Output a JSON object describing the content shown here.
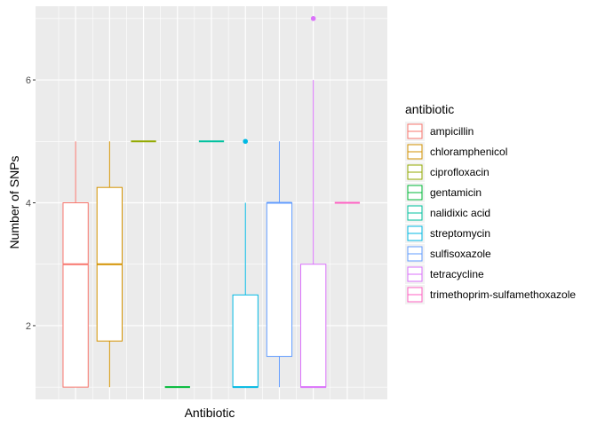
{
  "chart_data": {
    "type": "boxplot",
    "xlabel": "Antibiotic",
    "ylabel": "Number of SNPs",
    "ylim": [
      0.8,
      7.2
    ],
    "yticks": [
      2,
      4,
      6
    ],
    "x_tick_labels": false,
    "legend_title": "antibiotic",
    "legend_position": "right",
    "grid": true,
    "series": [
      {
        "name": "ampicillin",
        "color": "#F8766D",
        "min": 1,
        "q1": 1,
        "median": 3,
        "q3": 4,
        "max": 5,
        "outliers": []
      },
      {
        "name": "chloramphenicol",
        "color": "#D39200",
        "min": 1,
        "q1": 1.75,
        "median": 3,
        "q3": 4.25,
        "max": 5,
        "outliers": []
      },
      {
        "name": "ciprofloxacin",
        "color": "#93AA00",
        "min": 5,
        "q1": 5,
        "median": 5,
        "q3": 5,
        "max": 5,
        "outliers": []
      },
      {
        "name": "gentamicin",
        "color": "#00BA38",
        "min": 1,
        "q1": 1,
        "median": 1,
        "q3": 1,
        "max": 1,
        "outliers": []
      },
      {
        "name": "nalidixic acid",
        "color": "#00C19F",
        "min": 5,
        "q1": 5,
        "median": 5,
        "q3": 5,
        "max": 5,
        "outliers": []
      },
      {
        "name": "streptomycin",
        "color": "#00B9E3",
        "min": 1,
        "q1": 1,
        "median": 1,
        "q3": 2.5,
        "max": 4,
        "outliers": [
          5
        ]
      },
      {
        "name": "sulfisoxazole",
        "color": "#619CFF",
        "min": 1,
        "q1": 1.5,
        "median": 4,
        "q3": 4,
        "max": 5,
        "outliers": []
      },
      {
        "name": "tetracycline",
        "color": "#DB72FB",
        "min": 1,
        "q1": 1,
        "median": 1,
        "q3": 3,
        "max": 6,
        "outliers": [
          7
        ]
      },
      {
        "name": "trimethoprim-sulfamethoxazole",
        "color": "#FF61C3",
        "min": 4,
        "q1": 4,
        "median": 4,
        "q3": 4,
        "max": 4,
        "outliers": []
      }
    ]
  }
}
